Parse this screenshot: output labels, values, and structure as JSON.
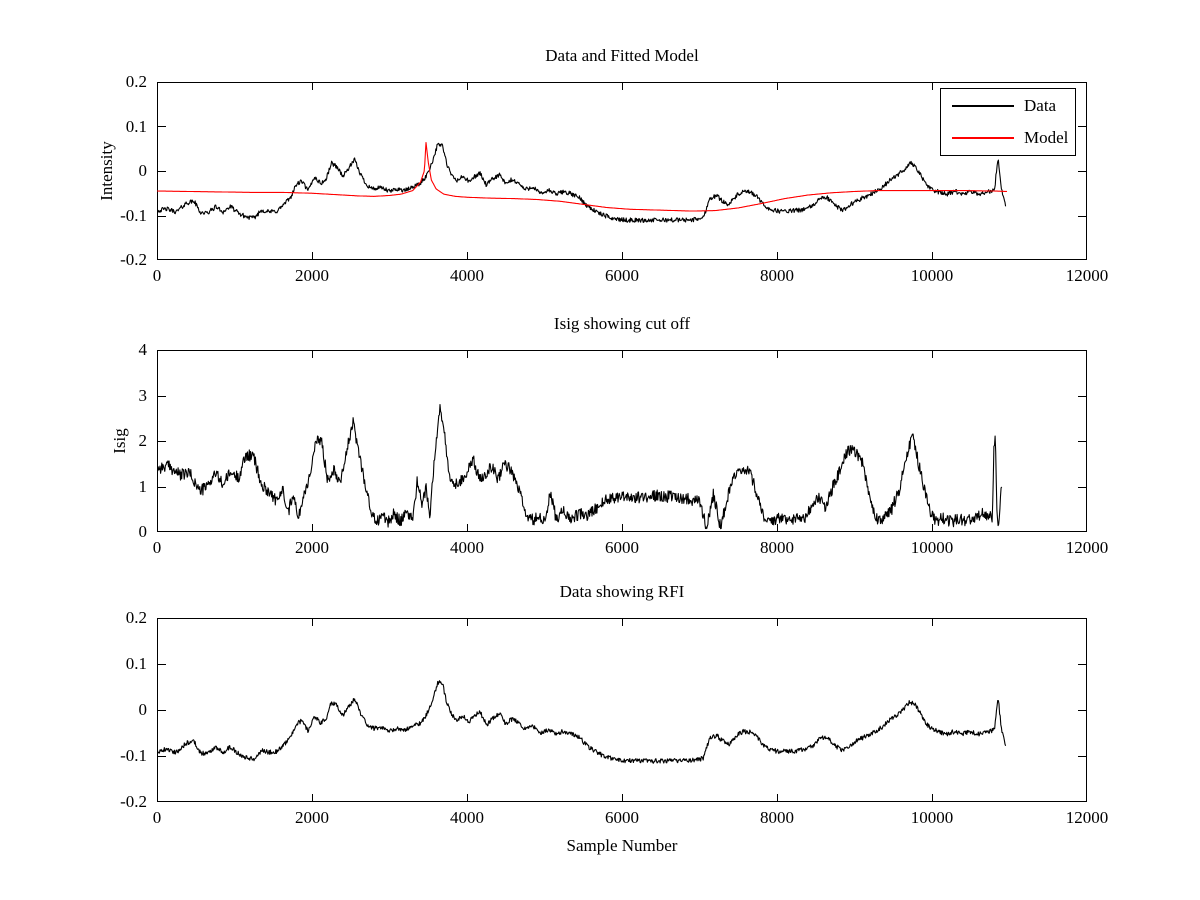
{
  "figure": {
    "background": "#ffffff",
    "axis_color": "#000000",
    "xlabel": "Sample Number"
  },
  "chart_data": [
    {
      "type": "line",
      "title": "Data and Fitted Model",
      "ylabel": "Intensity",
      "xlim": [
        0,
        12000
      ],
      "ylim": [
        -0.2,
        0.2
      ],
      "xticks": [
        0,
        2000,
        4000,
        6000,
        8000,
        10000,
        12000
      ],
      "xtick_labels": [
        "0",
        "2000",
        "4000",
        "6000",
        "8000",
        "10000",
        "12000"
      ],
      "yticks": [
        -0.2,
        -0.1,
        0,
        0.1,
        0.2
      ],
      "ytick_labels": [
        "-0.2",
        "-0.1",
        "0",
        "0.1",
        "0.2"
      ],
      "grid": false,
      "legend": {
        "position": "top-right",
        "entries": [
          {
            "label": "Data",
            "color": "#000000"
          },
          {
            "label": "Model",
            "color": "#ff0000"
          }
        ]
      },
      "series": [
        {
          "name": "Data",
          "color": "#000000",
          "noise": 0.005,
          "seed": 42,
          "anchors_ref": "intensity"
        },
        {
          "name": "Model",
          "color": "#ff0000",
          "noise": 0.0,
          "seed": 1,
          "anchors_ref": "model"
        }
      ]
    },
    {
      "type": "line",
      "title": "Isig showing cut off",
      "ylabel": "Isig",
      "xlim": [
        0,
        12000
      ],
      "ylim": [
        0,
        4
      ],
      "xticks": [
        0,
        2000,
        4000,
        6000,
        8000,
        10000,
        12000
      ],
      "xtick_labels": [
        "0",
        "2000",
        "4000",
        "6000",
        "8000",
        "10000",
        "12000"
      ],
      "yticks": [
        0,
        1,
        2,
        3,
        4
      ],
      "ytick_labels": [
        "0",
        "1",
        "2",
        "3",
        "4"
      ],
      "grid": false,
      "series": [
        {
          "name": "Isig",
          "color": "#000000",
          "noise": 0.13,
          "seed": 99,
          "anchors_ref": "isig",
          "clip_min": 0
        }
      ]
    },
    {
      "type": "line",
      "title": "Data showing RFI",
      "ylabel": "",
      "xlabel": "Sample Number",
      "xlim": [
        0,
        12000
      ],
      "ylim": [
        -0.2,
        0.2
      ],
      "xticks": [
        0,
        2000,
        4000,
        6000,
        8000,
        10000,
        12000
      ],
      "xtick_labels": [
        "0",
        "2000",
        "4000",
        "6000",
        "8000",
        "10000",
        "12000"
      ],
      "yticks": [
        -0.2,
        -0.1,
        0,
        0.1,
        0.2
      ],
      "ytick_labels": [
        "-0.2",
        "-0.1",
        "0",
        "0.1",
        "0.2"
      ],
      "grid": false,
      "series": [
        {
          "name": "Data",
          "color": "#000000",
          "noise": 0.005,
          "seed": 202,
          "anchors_ref": "intensity"
        }
      ]
    }
  ],
  "shared_series_anchors": {
    "intensity": [
      [
        0,
        -0.09
      ],
      [
        120,
        -0.085
      ],
      [
        250,
        -0.092
      ],
      [
        380,
        -0.072
      ],
      [
        480,
        -0.068
      ],
      [
        560,
        -0.093
      ],
      [
        650,
        -0.095
      ],
      [
        760,
        -0.08
      ],
      [
        850,
        -0.092
      ],
      [
        950,
        -0.08
      ],
      [
        1050,
        -0.095
      ],
      [
        1150,
        -0.103
      ],
      [
        1250,
        -0.106
      ],
      [
        1350,
        -0.088
      ],
      [
        1450,
        -0.092
      ],
      [
        1550,
        -0.09
      ],
      [
        1650,
        -0.073
      ],
      [
        1720,
        -0.06
      ],
      [
        1800,
        -0.03
      ],
      [
        1870,
        -0.023
      ],
      [
        1950,
        -0.045
      ],
      [
        2030,
        -0.013
      ],
      [
        2110,
        -0.028
      ],
      [
        2180,
        -0.02
      ],
      [
        2250,
        0.018
      ],
      [
        2320,
        0.01
      ],
      [
        2400,
        -0.012
      ],
      [
        2480,
        0.008
      ],
      [
        2550,
        0.025
      ],
      [
        2620,
        -0.005
      ],
      [
        2700,
        -0.03
      ],
      [
        2780,
        -0.04
      ],
      [
        2900,
        -0.038
      ],
      [
        3000,
        -0.046
      ],
      [
        3100,
        -0.04
      ],
      [
        3200,
        -0.044
      ],
      [
        3300,
        -0.036
      ],
      [
        3400,
        -0.028
      ],
      [
        3480,
        -0.01
      ],
      [
        3550,
        0.02
      ],
      [
        3620,
        0.058
      ],
      [
        3680,
        0.06
      ],
      [
        3740,
        0.015
      ],
      [
        3800,
        -0.01
      ],
      [
        3870,
        -0.022
      ],
      [
        3950,
        -0.012
      ],
      [
        4030,
        -0.025
      ],
      [
        4100,
        -0.012
      ],
      [
        4170,
        -0.005
      ],
      [
        4250,
        -0.032
      ],
      [
        4330,
        -0.018
      ],
      [
        4420,
        -0.008
      ],
      [
        4500,
        -0.03
      ],
      [
        4570,
        -0.02
      ],
      [
        4650,
        -0.025
      ],
      [
        4750,
        -0.042
      ],
      [
        4850,
        -0.035
      ],
      [
        4950,
        -0.052
      ],
      [
        5050,
        -0.043
      ],
      [
        5150,
        -0.052
      ],
      [
        5250,
        -0.046
      ],
      [
        5350,
        -0.052
      ],
      [
        5450,
        -0.06
      ],
      [
        5550,
        -0.078
      ],
      [
        5700,
        -0.095
      ],
      [
        5850,
        -0.105
      ],
      [
        6000,
        -0.11
      ],
      [
        6300,
        -0.111
      ],
      [
        6600,
        -0.11
      ],
      [
        6900,
        -0.11
      ],
      [
        7050,
        -0.105
      ],
      [
        7130,
        -0.062
      ],
      [
        7220,
        -0.055
      ],
      [
        7300,
        -0.068
      ],
      [
        7380,
        -0.075
      ],
      [
        7480,
        -0.055
      ],
      [
        7560,
        -0.047
      ],
      [
        7650,
        -0.048
      ],
      [
        7730,
        -0.055
      ],
      [
        7820,
        -0.075
      ],
      [
        7900,
        -0.085
      ],
      [
        8000,
        -0.09
      ],
      [
        8150,
        -0.09
      ],
      [
        8300,
        -0.088
      ],
      [
        8450,
        -0.08
      ],
      [
        8550,
        -0.062
      ],
      [
        8650,
        -0.06
      ],
      [
        8750,
        -0.078
      ],
      [
        8850,
        -0.088
      ],
      [
        8950,
        -0.075
      ],
      [
        9050,
        -0.065
      ],
      [
        9150,
        -0.057
      ],
      [
        9250,
        -0.048
      ],
      [
        9350,
        -0.038
      ],
      [
        9450,
        -0.022
      ],
      [
        9550,
        -0.01
      ],
      [
        9650,
        0.005
      ],
      [
        9720,
        0.018
      ],
      [
        9780,
        0.012
      ],
      [
        9850,
        -0.008
      ],
      [
        9920,
        -0.03
      ],
      [
        10000,
        -0.042
      ],
      [
        10100,
        -0.048
      ],
      [
        10200,
        -0.052
      ],
      [
        10300,
        -0.046
      ],
      [
        10400,
        -0.052
      ],
      [
        10500,
        -0.047
      ],
      [
        10600,
        -0.052
      ],
      [
        10700,
        -0.047
      ],
      [
        10780,
        -0.045
      ],
      [
        10810,
        -0.038
      ],
      [
        10835,
        0.005
      ],
      [
        10855,
        0.025
      ],
      [
        10875,
        -0.01
      ],
      [
        10900,
        -0.045
      ],
      [
        10930,
        -0.06
      ],
      [
        10950,
        -0.078
      ]
    ],
    "model": [
      [
        0,
        -0.045
      ],
      [
        400,
        -0.046
      ],
      [
        800,
        -0.047
      ],
      [
        1200,
        -0.048
      ],
      [
        1600,
        -0.048
      ],
      [
        2000,
        -0.05
      ],
      [
        2300,
        -0.053
      ],
      [
        2600,
        -0.056
      ],
      [
        2800,
        -0.057
      ],
      [
        3000,
        -0.055
      ],
      [
        3150,
        -0.052
      ],
      [
        3300,
        -0.044
      ],
      [
        3400,
        -0.025
      ],
      [
        3450,
        0.0
      ],
      [
        3470,
        0.065
      ],
      [
        3500,
        0.02
      ],
      [
        3540,
        -0.02
      ],
      [
        3600,
        -0.04
      ],
      [
        3700,
        -0.052
      ],
      [
        3850,
        -0.057
      ],
      [
        4000,
        -0.059
      ],
      [
        4300,
        -0.061
      ],
      [
        4600,
        -0.062
      ],
      [
        4900,
        -0.064
      ],
      [
        5200,
        -0.068
      ],
      [
        5500,
        -0.075
      ],
      [
        5800,
        -0.082
      ],
      [
        6100,
        -0.086
      ],
      [
        6500,
        -0.088
      ],
      [
        6900,
        -0.09
      ],
      [
        7200,
        -0.089
      ],
      [
        7500,
        -0.083
      ],
      [
        7800,
        -0.073
      ],
      [
        8100,
        -0.062
      ],
      [
        8400,
        -0.054
      ],
      [
        8700,
        -0.049
      ],
      [
        9000,
        -0.046
      ],
      [
        9300,
        -0.044
      ],
      [
        9600,
        -0.044
      ],
      [
        10000,
        -0.044
      ],
      [
        10400,
        -0.044
      ],
      [
        10800,
        -0.045
      ],
      [
        10968,
        -0.046
      ]
    ],
    "isig": [
      [
        0,
        1.4
      ],
      [
        150,
        1.45
      ],
      [
        300,
        1.25
      ],
      [
        420,
        1.3
      ],
      [
        550,
        0.9
      ],
      [
        650,
        1.0
      ],
      [
        750,
        1.3
      ],
      [
        850,
        1.05
      ],
      [
        950,
        1.3
      ],
      [
        1050,
        1.2
      ],
      [
        1150,
        1.7
      ],
      [
        1250,
        1.65
      ],
      [
        1350,
        1.0
      ],
      [
        1450,
        0.9
      ],
      [
        1550,
        0.65
      ],
      [
        1620,
        0.95
      ],
      [
        1700,
        0.45
      ],
      [
        1760,
        0.9
      ],
      [
        1820,
        0.25
      ],
      [
        1880,
        0.75
      ],
      [
        1950,
        1.1
      ],
      [
        2050,
        1.95
      ],
      [
        2120,
        2.05
      ],
      [
        2200,
        1.15
      ],
      [
        2280,
        1.4
      ],
      [
        2360,
        1.1
      ],
      [
        2450,
        1.8
      ],
      [
        2530,
        2.4
      ],
      [
        2600,
        1.8
      ],
      [
        2680,
        1.1
      ],
      [
        2760,
        0.45
      ],
      [
        2830,
        0.2
      ],
      [
        2900,
        0.4
      ],
      [
        2980,
        0.2
      ],
      [
        3060,
        0.4
      ],
      [
        3140,
        0.25
      ],
      [
        3220,
        0.4
      ],
      [
        3300,
        0.3
      ],
      [
        3360,
        1.15
      ],
      [
        3420,
        0.55
      ],
      [
        3470,
        1.0
      ],
      [
        3520,
        0.35
      ],
      [
        3580,
        1.6
      ],
      [
        3650,
        2.75
      ],
      [
        3700,
        2.3
      ],
      [
        3760,
        1.35
      ],
      [
        3830,
        1.0
      ],
      [
        3920,
        1.15
      ],
      [
        4000,
        1.3
      ],
      [
        4080,
        1.6
      ],
      [
        4160,
        1.15
      ],
      [
        4240,
        1.3
      ],
      [
        4320,
        1.45
      ],
      [
        4400,
        1.15
      ],
      [
        4480,
        1.55
      ],
      [
        4560,
        1.35
      ],
      [
        4650,
        1.05
      ],
      [
        4730,
        0.55
      ],
      [
        4800,
        0.25
      ],
      [
        4900,
        0.3
      ],
      [
        5000,
        0.25
      ],
      [
        5080,
        0.85
      ],
      [
        5150,
        0.3
      ],
      [
        5250,
        0.45
      ],
      [
        5350,
        0.28
      ],
      [
        5450,
        0.4
      ],
      [
        5550,
        0.35
      ],
      [
        5650,
        0.5
      ],
      [
        5750,
        0.65
      ],
      [
        5850,
        0.75
      ],
      [
        6000,
        0.8
      ],
      [
        6200,
        0.75
      ],
      [
        6400,
        0.8
      ],
      [
        6600,
        0.78
      ],
      [
        6800,
        0.75
      ],
      [
        7000,
        0.68
      ],
      [
        7090,
        0.1
      ],
      [
        7180,
        0.85
      ],
      [
        7270,
        0.12
      ],
      [
        7360,
        0.75
      ],
      [
        7450,
        1.2
      ],
      [
        7550,
        1.35
      ],
      [
        7650,
        1.3
      ],
      [
        7750,
        0.8
      ],
      [
        7850,
        0.25
      ],
      [
        7950,
        0.2
      ],
      [
        8050,
        0.32
      ],
      [
        8150,
        0.22
      ],
      [
        8250,
        0.35
      ],
      [
        8350,
        0.3
      ],
      [
        8450,
        0.6
      ],
      [
        8550,
        0.75
      ],
      [
        8620,
        0.5
      ],
      [
        8700,
        0.9
      ],
      [
        8800,
        1.3
      ],
      [
        8900,
        1.75
      ],
      [
        9000,
        1.8
      ],
      [
        9100,
        1.55
      ],
      [
        9180,
        0.9
      ],
      [
        9280,
        0.3
      ],
      [
        9380,
        0.28
      ],
      [
        9480,
        0.5
      ],
      [
        9580,
        0.95
      ],
      [
        9680,
        1.75
      ],
      [
        9750,
        2.1
      ],
      [
        9820,
        1.55
      ],
      [
        9900,
        0.95
      ],
      [
        9980,
        0.4
      ],
      [
        10060,
        0.25
      ],
      [
        10150,
        0.3
      ],
      [
        10250,
        0.22
      ],
      [
        10350,
        0.3
      ],
      [
        10450,
        0.25
      ],
      [
        10550,
        0.3
      ],
      [
        10650,
        0.42
      ],
      [
        10720,
        0.3
      ],
      [
        10780,
        0.35
      ],
      [
        10800,
        1.95
      ],
      [
        10820,
        2.0
      ],
      [
        10840,
        0.35
      ],
      [
        10860,
        0.1
      ],
      [
        10880,
        0.6
      ],
      [
        10900,
        1.1
      ]
    ]
  }
}
